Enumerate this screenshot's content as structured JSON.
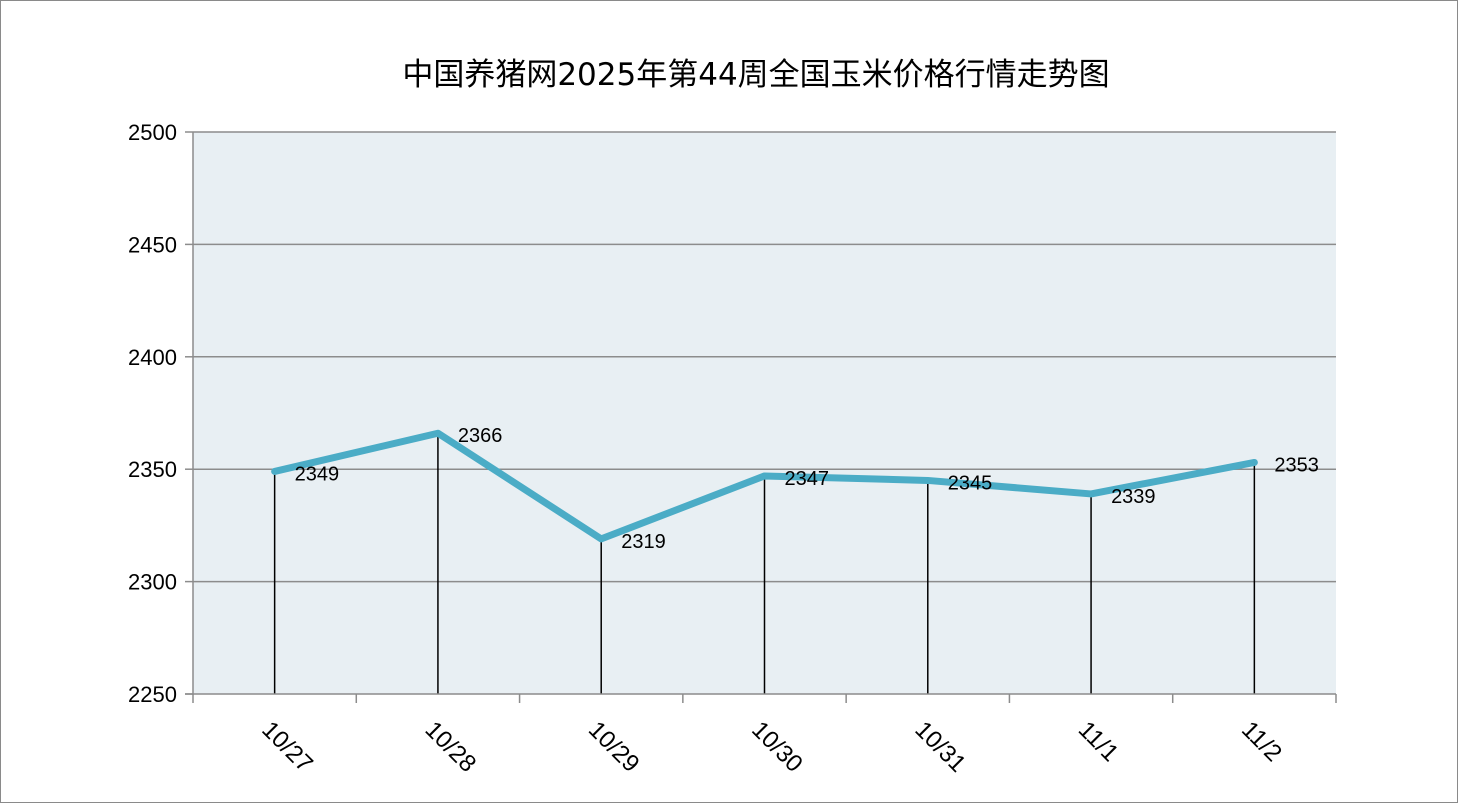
{
  "chart_data": {
    "type": "line",
    "title": "中国养猪网2025年第44周全国玉米价格行情走势图",
    "categories": [
      "10/27",
      "10/28",
      "10/29",
      "10/30",
      "10/31",
      "11/1",
      "11/2"
    ],
    "values": [
      2349,
      2366,
      2319,
      2347,
      2345,
      2339,
      2353
    ],
    "ylim": [
      2250,
      2500
    ],
    "yticks": [
      2250,
      2300,
      2350,
      2400,
      2450,
      2500
    ],
    "xlabel": "",
    "ylabel": "",
    "grid": true,
    "drop_lines": true,
    "data_labels": true,
    "legend": "none",
    "colors": {
      "line": "#4BACC6",
      "plot_background": "#E8EFF3",
      "gridline": "#8C8C8C",
      "drop_line": "#000000"
    }
  }
}
